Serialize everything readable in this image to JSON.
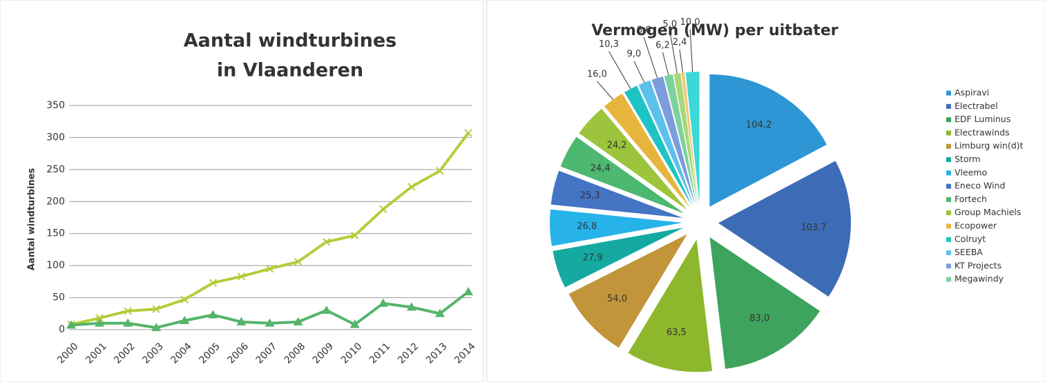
{
  "chart_data": [
    {
      "type": "line",
      "title": [
        "Aantal windturbines",
        "in Vlaanderen"
      ],
      "y_label": "Aantal windturbines",
      "categories": [
        "2000",
        "2001",
        "2002",
        "2003",
        "2004",
        "2005",
        "2006",
        "2007",
        "2008",
        "2009",
        "2010",
        "2011",
        "2012",
        "2013",
        "2014"
      ],
      "series": [
        {
          "color": "#b3cd3a",
          "marker": "x",
          "values": [
            8,
            18,
            29,
            32,
            47,
            73,
            83,
            95,
            106,
            137,
            147,
            188,
            223,
            248,
            307
          ]
        },
        {
          "color": "#55b46a",
          "marker": "triangle",
          "values": [
            7,
            10,
            10,
            3,
            14,
            23,
            12,
            10,
            12,
            30,
            8,
            41,
            35,
            25,
            59
          ]
        }
      ],
      "ylim": [
        0,
        350
      ],
      "yticks": [
        0,
        50,
        100,
        150,
        200,
        250,
        300,
        350
      ],
      "grid": true
    },
    {
      "type": "pie",
      "title": "Vermogen (MW) per uitbater",
      "categories": [
        "Aspiravi",
        "Electrabel",
        "EDF Luminus",
        "Electrawinds",
        "Limburg win(d)t",
        "Storm",
        "Vleemo",
        "Eneco Wind",
        "Fortech",
        "Group Machiels",
        "Ecopower",
        "Colruyt",
        "SEEBA",
        "KT Projects",
        "Megawindy",
        null,
        null,
        null
      ],
      "values": [
        104.2,
        103.7,
        83.0,
        63.5,
        54.0,
        27.9,
        26.8,
        25.3,
        24.4,
        24.2,
        16.0,
        10.3,
        9.0,
        8.6,
        6.2,
        5.0,
        2.4,
        10.0
      ],
      "value_labels": [
        "104,2",
        "103,7",
        "83,0",
        "63,5",
        "54,0",
        "27,9",
        "26,8",
        "25,3",
        "24,4",
        "24,2",
        "16,0",
        "10,3",
        "9,0",
        "8,6",
        "6,2",
        "5,0",
        "2,4",
        "10,0"
      ],
      "colors": [
        "#2e96d4",
        "#3d6cb6",
        "#3ea35c",
        "#8db72c",
        "#c2953b",
        "#14aaa2",
        "#27b3ea",
        "#4474c4",
        "#4cb870",
        "#9cc43c",
        "#e8b53c",
        "#1ec4c4",
        "#5cc0ec",
        "#7c9cdc",
        "#7cd29c",
        "#a8d878",
        "#f0c878",
        "#3cd8d8"
      ],
      "legend": "right"
    }
  ]
}
